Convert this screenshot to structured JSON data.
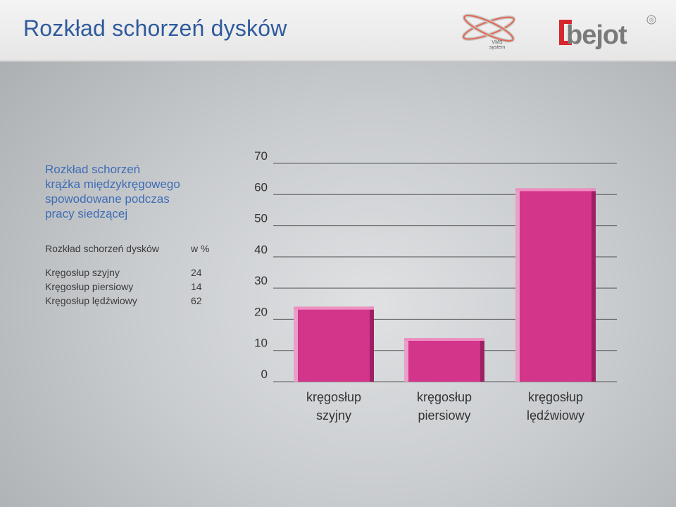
{
  "header": {
    "title": "Rozkład schorzeń dysków",
    "vms_logo_text": "VMS\nsystem",
    "brand_logo_text": "bejot",
    "brand_registered": "®"
  },
  "description": "Rozkład schorzeń\nkrążka międzykręgowego\nspowodowane podczas\npracy siedzącej",
  "table": {
    "header": [
      "Rozkład schorzeń dysków",
      "w %"
    ],
    "rows": [
      [
        "Kręgosłup szyjny",
        "24"
      ],
      [
        "Kręgosłup piersiowy",
        "14"
      ],
      [
        "Kręgosłup lędźwiowy",
        "62"
      ]
    ]
  },
  "chart_data": {
    "type": "bar",
    "categories": [
      [
        "kręgosłup",
        "szyjny"
      ],
      [
        "kręgosłup",
        "piersiowy"
      ],
      [
        "kręgosłup",
        "lędźwiowy"
      ]
    ],
    "values": [
      24,
      14,
      62
    ],
    "ylim": [
      0,
      70
    ],
    "yticks": [
      0,
      10,
      20,
      30,
      40,
      50,
      60,
      70
    ],
    "bar_color": "#d2358a",
    "grid": true
  }
}
